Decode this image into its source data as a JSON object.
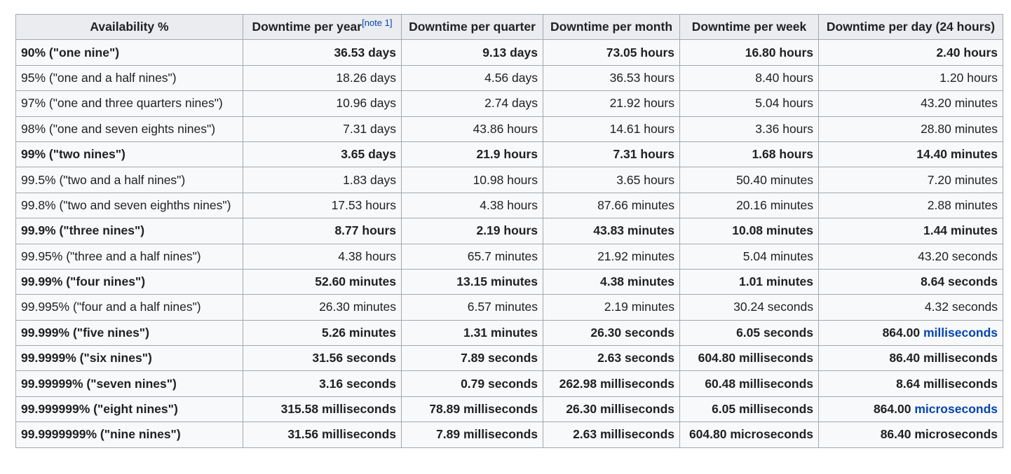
{
  "table": {
    "headers": [
      {
        "label": "Availability %",
        "note": ""
      },
      {
        "label": "Downtime per year",
        "note": "[note 1]"
      },
      {
        "label": "Downtime per quarter",
        "note": ""
      },
      {
        "label": "Downtime per month",
        "note": ""
      },
      {
        "label": "Downtime per week",
        "note": ""
      },
      {
        "label": "Downtime per day (24 hours)",
        "note": ""
      }
    ],
    "rows": [
      {
        "bold": true,
        "cells": [
          "90% (\"one nine\")",
          "36.53 days",
          "9.13 days",
          "73.05 hours",
          "16.80 hours",
          "2.40 hours"
        ]
      },
      {
        "bold": false,
        "cells": [
          "95% (\"one and a half nines\")",
          "18.26 days",
          "4.56 days",
          "36.53 hours",
          "8.40 hours",
          "1.20 hours"
        ]
      },
      {
        "bold": false,
        "cells": [
          "97% (\"one and three quarters nines\")",
          "10.96 days",
          "2.74 days",
          "21.92 hours",
          "5.04 hours",
          "43.20 minutes"
        ]
      },
      {
        "bold": false,
        "cells": [
          "98% (\"one and seven eights nines\")",
          "7.31 days",
          "43.86 hours",
          "14.61 hours",
          "3.36 hours",
          "28.80 minutes"
        ]
      },
      {
        "bold": true,
        "cells": [
          "99% (\"two nines\")",
          "3.65 days",
          "21.9 hours",
          "7.31 hours",
          "1.68 hours",
          "14.40 minutes"
        ]
      },
      {
        "bold": false,
        "cells": [
          "99.5% (\"two and a half nines\")",
          "1.83 days",
          "10.98 hours",
          "3.65 hours",
          "50.40 minutes",
          "7.20 minutes"
        ]
      },
      {
        "bold": false,
        "cells": [
          "99.8% (\"two and seven eighths nines\")",
          "17.53 hours",
          "4.38 hours",
          "87.66 minutes",
          "20.16 minutes",
          "2.88 minutes"
        ]
      },
      {
        "bold": true,
        "cells": [
          "99.9% (\"three nines\")",
          "8.77 hours",
          "2.19 hours",
          "43.83 minutes",
          "10.08 minutes",
          "1.44 minutes"
        ]
      },
      {
        "bold": false,
        "cells": [
          "99.95% (\"three and a half nines\")",
          "4.38 hours",
          "65.7 minutes",
          "21.92 minutes",
          "5.04 minutes",
          "43.20 seconds"
        ]
      },
      {
        "bold": true,
        "cells": [
          "99.99% (\"four nines\")",
          "52.60 minutes",
          "13.15 minutes",
          "4.38 minutes",
          "1.01 minutes",
          "8.64 seconds"
        ]
      },
      {
        "bold": false,
        "cells": [
          "99.995% (\"four and a half nines\")",
          "26.30 minutes",
          "6.57 minutes",
          "2.19 minutes",
          "30.24 seconds",
          "4.32 seconds"
        ]
      },
      {
        "bold": true,
        "cells": [
          "99.999% (\"five nines\")",
          "5.26 minutes",
          "1.31 minutes",
          "26.30 seconds",
          "6.05 seconds",
          "864.00 milliseconds"
        ]
      },
      {
        "bold": true,
        "cells": [
          "99.9999% (\"six nines\")",
          "31.56 seconds",
          "7.89 seconds",
          "2.63 seconds",
          "604.80 milliseconds",
          "86.40 milliseconds"
        ]
      },
      {
        "bold": true,
        "cells": [
          "99.99999% (\"seven nines\")",
          "3.16 seconds",
          "0.79 seconds",
          "262.98 milliseconds",
          "60.48 milliseconds",
          "8.64 milliseconds"
        ]
      },
      {
        "bold": true,
        "cells": [
          "99.999999% (\"eight nines\")",
          "315.58 milliseconds",
          "78.89 milliseconds",
          "26.30 milliseconds",
          "6.05 milliseconds",
          "864.00 microseconds"
        ]
      },
      {
        "bold": true,
        "cells": [
          "99.9999999% (\"nine nines\")",
          "31.56 milliseconds",
          "7.89 milliseconds",
          "2.63 milliseconds",
          "604.80 microseconds",
          "86.40 microseconds"
        ]
      }
    ],
    "linked_units": {
      "11": {
        "col": 5,
        "number": "864.00",
        "unit": "milliseconds"
      },
      "14": {
        "col": 5,
        "number": "864.00",
        "unit": "microseconds"
      }
    },
    "colors": {
      "header_bg": "#eaecf0",
      "cell_bg": "#f8f9fa",
      "border": "#a2a9b1",
      "link": "#0645ad"
    }
  }
}
